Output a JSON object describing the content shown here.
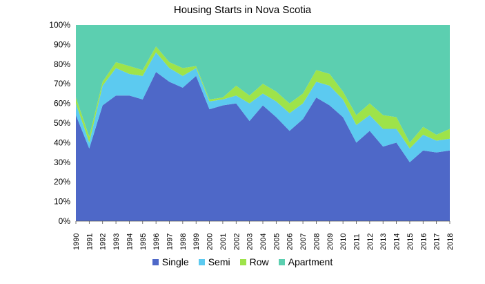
{
  "chart_data": {
    "type": "area",
    "stacked": true,
    "normalized_percent": true,
    "title": "Housing Starts in Nova Scotia",
    "xlabel": "",
    "ylabel": "",
    "ylim": [
      0,
      100
    ],
    "y_ticks": [
      "0%",
      "10%",
      "20%",
      "30%",
      "40%",
      "50%",
      "60%",
      "70%",
      "80%",
      "90%",
      "100%"
    ],
    "categories": [
      "1990",
      "1991",
      "1992",
      "1993",
      "1994",
      "1995",
      "1996",
      "1997",
      "1998",
      "1999",
      "2000",
      "2001",
      "2002",
      "2003",
      "2004",
      "2005",
      "2006",
      "2007",
      "2008",
      "2009",
      "2010",
      "2011",
      "2012",
      "2013",
      "2014",
      "2015",
      "2016",
      "2017",
      "2018"
    ],
    "series": [
      {
        "name": "Single",
        "color": "#4e68c8",
        "values": [
          54,
          37,
          59,
          64,
          64,
          62,
          76,
          71,
          68,
          74,
          57,
          59,
          60,
          51,
          59,
          53,
          46,
          52,
          63,
          59,
          53,
          40,
          46,
          38,
          40,
          30,
          36,
          35,
          36
        ]
      },
      {
        "name": "Semi",
        "color": "#5ccaf0",
        "values": [
          6,
          3,
          10,
          14,
          11,
          12,
          10,
          7,
          6,
          4,
          4,
          3,
          4,
          9,
          6,
          8,
          9,
          8,
          8,
          10,
          9,
          9,
          8,
          9,
          7,
          7,
          8,
          6,
          6
        ]
      },
      {
        "name": "Row",
        "color": "#9ee34a",
        "values": [
          3,
          3,
          2,
          3,
          4,
          3,
          3,
          3,
          4,
          1,
          1,
          1,
          5,
          4,
          5,
          5,
          5,
          5,
          6,
          6,
          4,
          5,
          6,
          7,
          6,
          3,
          4,
          3,
          5
        ]
      },
      {
        "name": "Apartment",
        "color": "#5ccfb0",
        "values": [
          37,
          57,
          29,
          19,
          21,
          23,
          11,
          19,
          22,
          21,
          38,
          37,
          31,
          36,
          30,
          34,
          40,
          35,
          23,
          25,
          34,
          46,
          40,
          46,
          47,
          60,
          52,
          56,
          53
        ]
      }
    ],
    "legend_position": "bottom",
    "grid": false
  }
}
